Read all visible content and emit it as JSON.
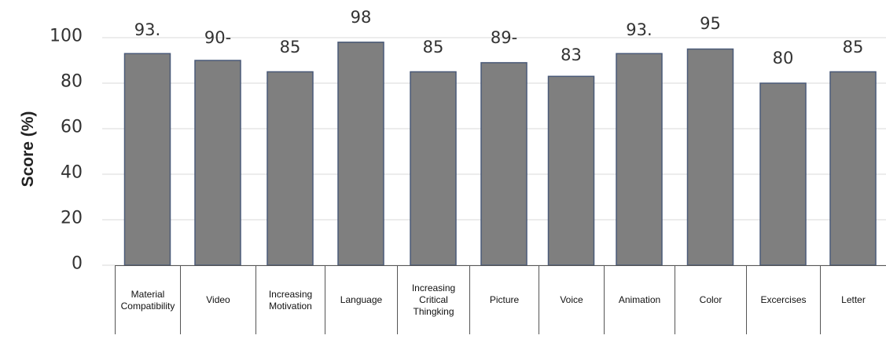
{
  "chart_data": {
    "type": "bar",
    "ylabel": "Score (%)",
    "xlabel": "",
    "ylim": [
      0,
      100
    ],
    "yticks": [
      "0",
      "20",
      "40",
      "60",
      "80",
      "100"
    ],
    "categories": [
      "Material Compatibility",
      "Video",
      "Increasing Motivation",
      "Language",
      "Increasing Critical Thingking",
      "Picture",
      "Voice",
      "Animation",
      "Color",
      "Excercises",
      "Letter"
    ],
    "values": [
      93,
      90,
      85,
      98,
      85,
      89,
      83,
      93,
      95,
      80,
      85
    ],
    "data_labels": [
      "93.",
      "90-",
      "85",
      "98",
      "85",
      "89-",
      "83",
      "93.",
      "95",
      "80",
      "85"
    ],
    "grid": true,
    "bar_color": "#7f7f7f",
    "bar_edge_color": "#4a5a78",
    "grid_color": "#d9d9d9"
  }
}
